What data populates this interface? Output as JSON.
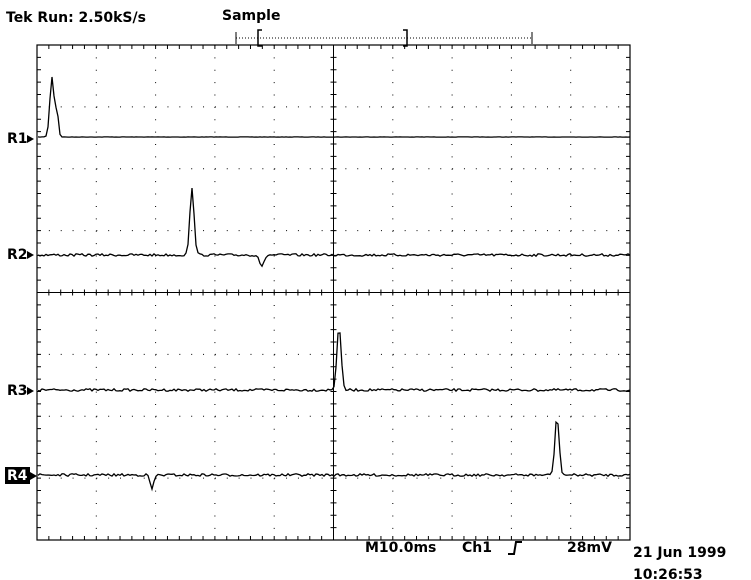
{
  "header": {
    "status": "Tek Run: 2.50kS/s",
    "mode": "Sample"
  },
  "channels": [
    "R1",
    "R2",
    "R3",
    "R4"
  ],
  "footer": {
    "timebase": "M10.0ms",
    "trigger_source": "Ch1",
    "trigger_level": "28mV",
    "date": "21 Jun 1999",
    "time": "10:26:53"
  }
}
